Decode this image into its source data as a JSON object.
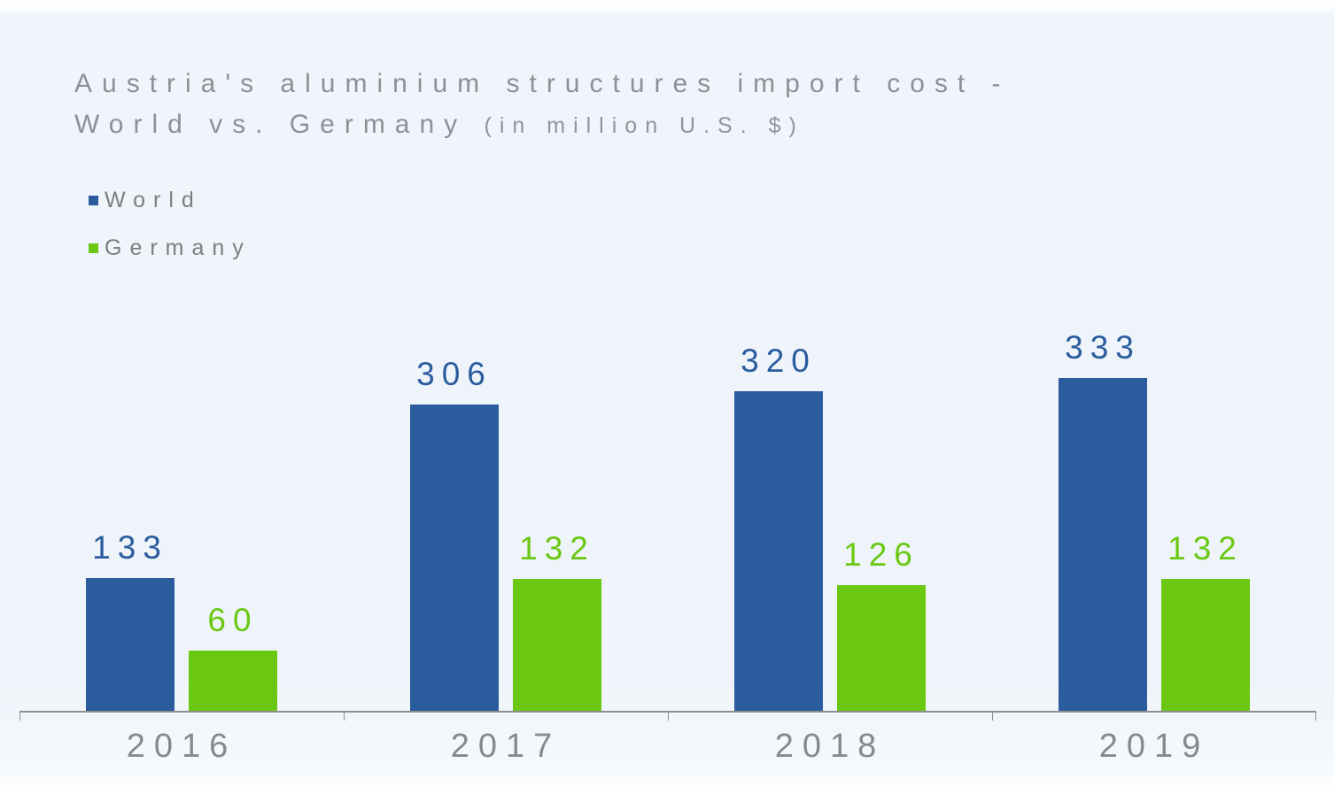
{
  "title": {
    "line1": "Austria's aluminium structures import cost -",
    "line2_main": "World vs. Germany",
    "line2_units": "(in million U.S. $)"
  },
  "legend": {
    "items": [
      {
        "label": "World",
        "color": "#2a5c9e"
      },
      {
        "label": "Germany",
        "color": "#6ac813"
      }
    ]
  },
  "colors": {
    "world_series": "#2a5c9e",
    "germany_series": "#6ac813",
    "title_text": "#8b9196",
    "axis_line": "#8f8f8f",
    "year_label_text": "#898989",
    "legend_text": "#7e7e7e",
    "background": "#eef4fa"
  },
  "chart_data": {
    "type": "bar",
    "title": "Austria's aluminium structures import cost - World vs. Germany (in million U.S. $)",
    "categories": [
      "2016",
      "2017",
      "2018",
      "2019"
    ],
    "series": [
      {
        "name": "World",
        "color": "#2a5c9e",
        "values": [
          133,
          306,
          320,
          333
        ]
      },
      {
        "name": "Germany",
        "color": "#6ac813",
        "values": [
          60,
          132,
          126,
          132
        ]
      }
    ],
    "xlabel": "",
    "ylabel": "",
    "ylim": [
      0,
      340
    ],
    "grid": false,
    "y_axis_visible": false,
    "x_axis_visible": true,
    "value_labels": true,
    "legend_position": "top-left"
  }
}
